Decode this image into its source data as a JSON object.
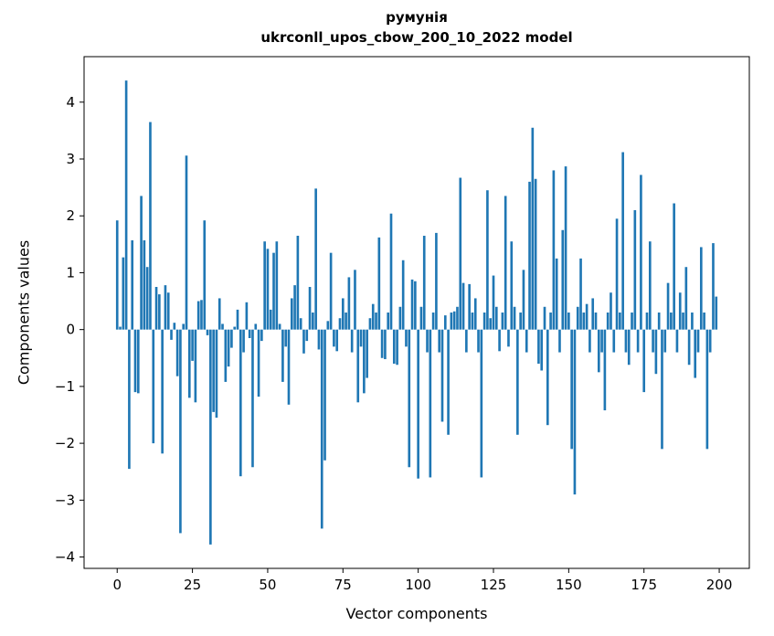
{
  "figure": {
    "title_line1": "румунія",
    "title_line2": "ukrconll_upos_cbow_200_10_2022 model",
    "xlabel": "Vector components",
    "ylabel": "Components values"
  },
  "chart_data": {
    "type": "bar",
    "title": "румунія\nukrconll_upos_cbow_200_10_2022 model",
    "xlabel": "Vector components",
    "ylabel": "Components values",
    "bar_color": "#1f77b4",
    "grid": false,
    "legend": "none",
    "xlim": [
      -11,
      210
    ],
    "ylim": [
      -4.2,
      4.8
    ],
    "xticks": [
      0,
      25,
      50,
      75,
      100,
      125,
      150,
      175,
      200
    ],
    "yticks": [
      -4,
      -3,
      -2,
      -1,
      0,
      1,
      2,
      3,
      4
    ],
    "x_start": 0,
    "values": [
      1.92,
      0.05,
      1.27,
      4.38,
      -2.45,
      1.57,
      -1.1,
      -1.12,
      2.35,
      1.57,
      1.1,
      3.65,
      -2.0,
      0.75,
      0.62,
      -2.18,
      0.78,
      0.65,
      -0.18,
      0.12,
      -0.82,
      -3.58,
      0.1,
      3.06,
      -1.2,
      -0.55,
      -1.28,
      0.5,
      0.52,
      1.92,
      -0.1,
      -3.78,
      -1.45,
      -1.55,
      0.55,
      0.1,
      -0.92,
      -0.65,
      -0.32,
      0.05,
      0.35,
      -2.58,
      -0.4,
      0.48,
      -0.15,
      -2.42,
      0.1,
      -1.18,
      -0.2,
      1.55,
      1.42,
      0.35,
      1.35,
      1.55,
      0.1,
      -0.92,
      -0.3,
      -1.32,
      0.55,
      0.78,
      1.65,
      0.2,
      -0.42,
      -0.2,
      0.75,
      0.3,
      2.48,
      -0.35,
      -3.5,
      -2.3,
      0.15,
      1.35,
      -0.3,
      -0.38,
      0.2,
      0.55,
      0.3,
      0.92,
      -0.4,
      1.05,
      -1.28,
      -0.3,
      -1.12,
      -0.85,
      0.2,
      0.45,
      0.3,
      1.62,
      -0.5,
      -0.52,
      0.3,
      2.04,
      -0.6,
      -0.62,
      0.4,
      1.22,
      -0.3,
      -2.42,
      0.88,
      0.85,
      -2.62,
      0.4,
      1.65,
      -0.4,
      -2.6,
      0.3,
      1.7,
      -0.4,
      -1.62,
      0.25,
      -1.85,
      0.3,
      0.32,
      0.4,
      2.67,
      0.82,
      -0.4,
      0.8,
      0.3,
      0.55,
      -0.4,
      -2.6,
      0.3,
      2.45,
      0.2,
      0.95,
      0.4,
      -0.38,
      0.3,
      2.35,
      -0.3,
      1.55,
      0.4,
      -1.85,
      0.3,
      1.05,
      -0.4,
      2.6,
      3.55,
      2.65,
      -0.6,
      -0.72,
      0.4,
      -1.68,
      0.3,
      2.8,
      1.25,
      -0.4,
      1.75,
      2.87,
      0.3,
      -2.1,
      -2.9,
      0.4,
      1.25,
      0.3,
      0.45,
      -0.4,
      0.55,
      0.3,
      -0.75,
      -0.4,
      -1.42,
      0.3,
      0.65,
      -0.4,
      1.95,
      0.3,
      3.12,
      -0.4,
      -0.62,
      0.3,
      2.1,
      -0.4,
      2.72,
      -1.1,
      0.3,
      1.55,
      -0.4,
      -0.78,
      0.3,
      -2.1,
      -0.4,
      0.82,
      0.3,
      2.22,
      -0.4,
      0.65,
      0.3,
      1.1,
      -0.62,
      0.3,
      -0.85,
      -0.4,
      1.45,
      0.3,
      -2.1,
      -0.4,
      1.52,
      0.58
    ]
  }
}
